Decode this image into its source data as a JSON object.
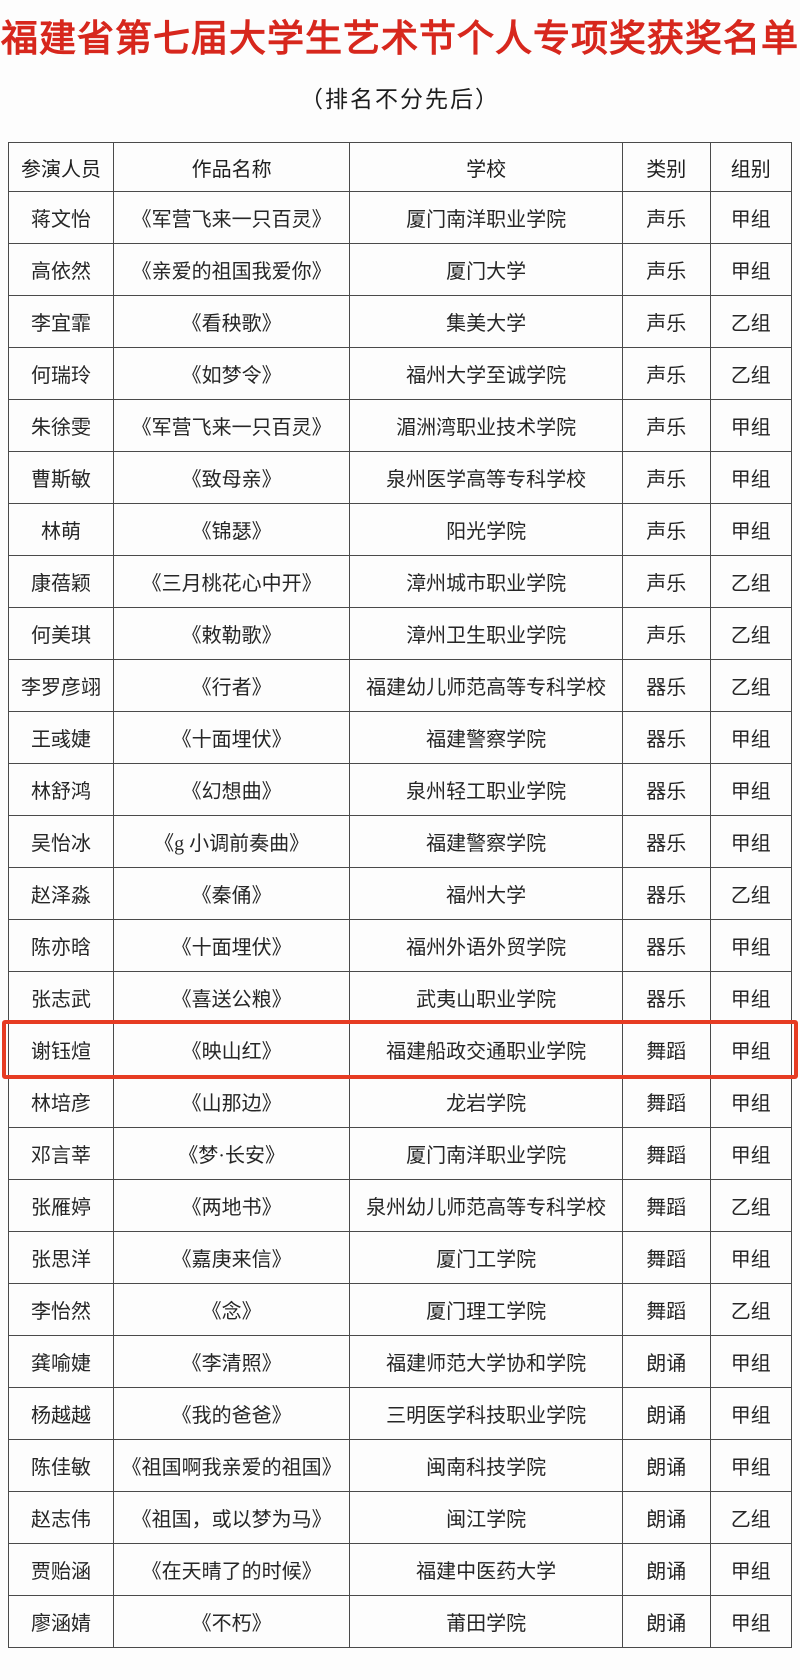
{
  "page": {
    "title": "福建省第七届大学生艺术节个人专项奖获奖名单",
    "subtitle": "（排名不分先后）",
    "accent_red": "#d7271d",
    "highlight_border": "#e63c23"
  },
  "table": {
    "headers": [
      "参演人员",
      "作品名称",
      "学校",
      "类别",
      "组别"
    ],
    "highlighted_row_index": 16,
    "rows": [
      [
        "蒋文怡",
        "《军营飞来一只百灵》",
        "厦门南洋职业学院",
        "声乐",
        "甲组"
      ],
      [
        "高依然",
        "《亲爱的祖国我爱你》",
        "厦门大学",
        "声乐",
        "甲组"
      ],
      [
        "李宜霏",
        "《看秧歌》",
        "集美大学",
        "声乐",
        "乙组"
      ],
      [
        "何瑞玲",
        "《如梦令》",
        "福州大学至诚学院",
        "声乐",
        "乙组"
      ],
      [
        "朱徐雯",
        "《军营飞来一只百灵》",
        "湄洲湾职业技术学院",
        "声乐",
        "甲组"
      ],
      [
        "曹斯敏",
        "《致母亲》",
        "泉州医学高等专科学校",
        "声乐",
        "甲组"
      ],
      [
        "林萌",
        "《锦瑟》",
        "阳光学院",
        "声乐",
        "甲组"
      ],
      [
        "康蓓颖",
        "《三月桃花心中开》",
        "漳州城市职业学院",
        "声乐",
        "乙组"
      ],
      [
        "何美琪",
        "《敕勒歌》",
        "漳州卫生职业学院",
        "声乐",
        "乙组"
      ],
      [
        "李罗彦翊",
        "《行者》",
        "福建幼儿师范高等专科学校",
        "器乐",
        "乙组"
      ],
      [
        "王彧婕",
        "《十面埋伏》",
        "福建警察学院",
        "器乐",
        "甲组"
      ],
      [
        "林舒鸿",
        "《幻想曲》",
        "泉州轻工职业学院",
        "器乐",
        "甲组"
      ],
      [
        "吴怡冰",
        "《g 小调前奏曲》",
        "福建警察学院",
        "器乐",
        "甲组"
      ],
      [
        "赵泽淼",
        "《秦俑》",
        "福州大学",
        "器乐",
        "乙组"
      ],
      [
        "陈亦晗",
        "《十面埋伏》",
        "福州外语外贸学院",
        "器乐",
        "甲组"
      ],
      [
        "张志武",
        "《喜送公粮》",
        "武夷山职业学院",
        "器乐",
        "甲组"
      ],
      [
        "谢钰煊",
        "《映山红》",
        "福建船政交通职业学院",
        "舞蹈",
        "甲组"
      ],
      [
        "林培彦",
        "《山那边》",
        "龙岩学院",
        "舞蹈",
        "甲组"
      ],
      [
        "邓言莘",
        "《梦·长安》",
        "厦门南洋职业学院",
        "舞蹈",
        "甲组"
      ],
      [
        "张雁婷",
        "《两地书》",
        "泉州幼儿师范高等专科学校",
        "舞蹈",
        "乙组"
      ],
      [
        "张思洋",
        "《嘉庚来信》",
        "厦门工学院",
        "舞蹈",
        "甲组"
      ],
      [
        "李怡然",
        "《念》",
        "厦门理工学院",
        "舞蹈",
        "乙组"
      ],
      [
        "龚喻婕",
        "《李清照》",
        "福建师范大学协和学院",
        "朗诵",
        "甲组"
      ],
      [
        "杨越越",
        "《我的爸爸》",
        "三明医学科技职业学院",
        "朗诵",
        "甲组"
      ],
      [
        "陈佳敏",
        "《祖国啊我亲爱的祖国》",
        "闽南科技学院",
        "朗诵",
        "甲组"
      ],
      [
        "赵志伟",
        "《祖国，或以梦为马》",
        "闽江学院",
        "朗诵",
        "乙组"
      ],
      [
        "贾贻涵",
        "《在天晴了的时候》",
        "福建中医药大学",
        "朗诵",
        "甲组"
      ],
      [
        "廖涵婧",
        "《不朽》",
        "莆田学院",
        "朗诵",
        "甲组"
      ]
    ]
  }
}
